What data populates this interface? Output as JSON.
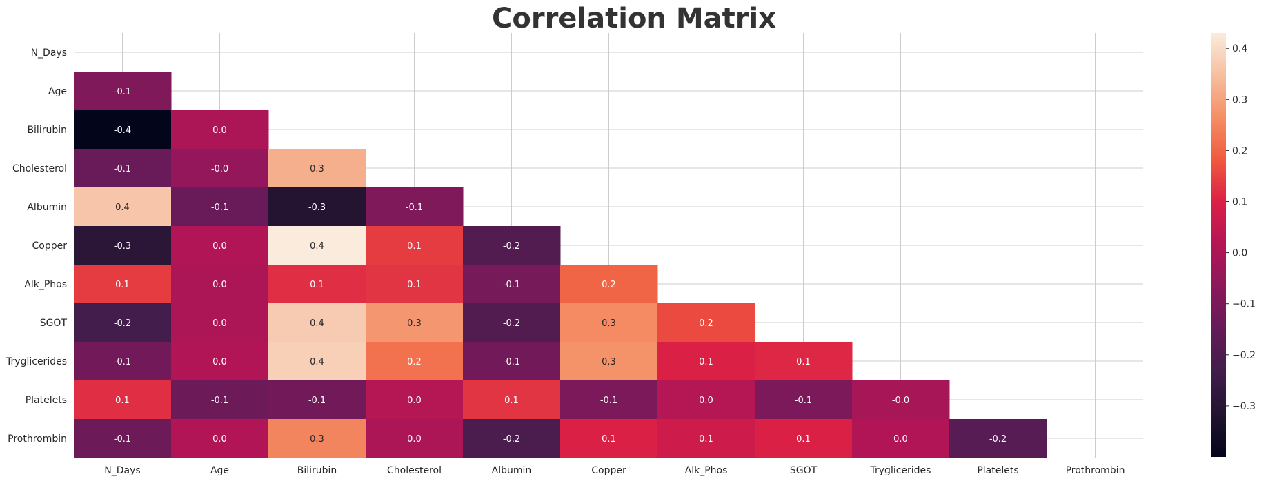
{
  "chart_data": {
    "type": "heatmap",
    "title": "Correlation Matrix",
    "labels": [
      "N_Days",
      "Age",
      "Bilirubin",
      "Cholesterol",
      "Albumin",
      "Copper",
      "Alk_Phos",
      "SGOT",
      "Tryglicerides",
      "Platelets",
      "Prothrombin"
    ],
    "mask": "upper-triangle-including-diagonal",
    "grid": true,
    "colormap": "rocket",
    "colorbar": {
      "range": [
        -0.4,
        0.43
      ],
      "ticks": [
        -0.3,
        -0.2,
        -0.1,
        0.0,
        0.1,
        0.2,
        0.3,
        0.4
      ],
      "tick_labels": [
        "−0.3",
        "−0.2",
        "−0.1",
        "0.0",
        "0.1",
        "0.2",
        "0.3",
        "0.4"
      ],
      "placement": "right"
    },
    "values": [
      [
        null,
        null,
        null,
        null,
        null,
        null,
        null,
        null,
        null,
        null,
        null
      ],
      [
        -0.09,
        null,
        null,
        null,
        null,
        null,
        null,
        null,
        null,
        null,
        null
      ],
      [
        -0.4,
        0.0,
        null,
        null,
        null,
        null,
        null,
        null,
        null,
        null,
        null
      ],
      [
        -0.14,
        -0.05,
        0.32,
        null,
        null,
        null,
        null,
        null,
        null,
        null,
        null
      ],
      [
        0.36,
        -0.14,
        -0.31,
        -0.09,
        null,
        null,
        null,
        null,
        null,
        null,
        null
      ],
      [
        -0.29,
        0.01,
        0.43,
        0.14,
        -0.19,
        null,
        null,
        null,
        null,
        null,
        null
      ],
      [
        0.14,
        0.0,
        0.12,
        0.13,
        -0.11,
        0.2,
        null,
        null,
        null,
        null,
        null
      ],
      [
        -0.23,
        0.0,
        0.37,
        0.28,
        -0.19,
        0.26,
        0.16,
        null,
        null,
        null,
        null
      ],
      [
        -0.12,
        0.01,
        0.38,
        0.22,
        -0.12,
        0.27,
        0.1,
        0.11,
        null,
        null,
        null
      ],
      [
        0.12,
        -0.13,
        -0.12,
        0.02,
        0.13,
        -0.1,
        0.02,
        -0.1,
        -0.01,
        null,
        null
      ],
      [
        -0.13,
        0.01,
        0.25,
        0.0,
        -0.21,
        0.1,
        0.07,
        0.1,
        0.01,
        -0.18,
        null
      ]
    ],
    "annotations": [
      [
        null,
        null,
        null,
        null,
        null,
        null,
        null,
        null,
        null,
        null,
        null
      ],
      [
        "-0.1",
        null,
        null,
        null,
        null,
        null,
        null,
        null,
        null,
        null,
        null
      ],
      [
        "-0.4",
        "0.0",
        null,
        null,
        null,
        null,
        null,
        null,
        null,
        null,
        null
      ],
      [
        "-0.1",
        "-0.0",
        "0.3",
        null,
        null,
        null,
        null,
        null,
        null,
        null,
        null
      ],
      [
        "0.4",
        "-0.1",
        "-0.3",
        "-0.1",
        null,
        null,
        null,
        null,
        null,
        null,
        null
      ],
      [
        "-0.3",
        "0.0",
        "0.4",
        "0.1",
        "-0.2",
        null,
        null,
        null,
        null,
        null,
        null
      ],
      [
        "0.1",
        "0.0",
        "0.1",
        "0.1",
        "-0.1",
        "0.2",
        null,
        null,
        null,
        null,
        null
      ],
      [
        "-0.2",
        "0.0",
        "0.4",
        "0.3",
        "-0.2",
        "0.3",
        "0.2",
        null,
        null,
        null,
        null
      ],
      [
        "-0.1",
        "0.0",
        "0.4",
        "0.2",
        "-0.1",
        "0.3",
        "0.1",
        "0.1",
        null,
        null,
        null
      ],
      [
        "0.1",
        "-0.1",
        "-0.1",
        "0.0",
        "0.1",
        "-0.1",
        "0.0",
        "-0.1",
        "-0.0",
        null,
        null
      ],
      [
        "-0.1",
        "0.0",
        "0.3",
        "0.0",
        "-0.2",
        "0.1",
        "0.1",
        "0.1",
        "0.0",
        "-0.2",
        null
      ]
    ]
  }
}
